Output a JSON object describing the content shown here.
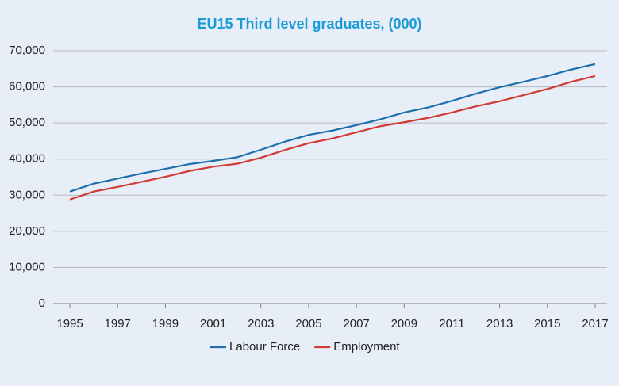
{
  "chart_data": {
    "type": "line",
    "title": "EU15 Third level graduates, (000)",
    "x": [
      1995,
      1996,
      1997,
      1998,
      1999,
      2000,
      2001,
      2002,
      2003,
      2004,
      2005,
      2006,
      2007,
      2008,
      2009,
      2010,
      2011,
      2012,
      2013,
      2014,
      2015,
      2016,
      2017
    ],
    "series": [
      {
        "name": "Labour Force",
        "color": "#1f6fad",
        "values": [
          31000,
          33200,
          34600,
          36000,
          37300,
          38600,
          39500,
          40500,
          42600,
          44800,
          46700,
          47900,
          49400,
          51000,
          52900,
          54300,
          56100,
          58100,
          59900,
          61400,
          63000,
          64800,
          66300
        ]
      },
      {
        "name": "Employment",
        "color": "#d23a35",
        "values": [
          28800,
          31000,
          32300,
          33700,
          35100,
          36700,
          37900,
          38700,
          40400,
          42500,
          44400,
          45700,
          47400,
          49100,
          50200,
          51400,
          52900,
          54600,
          56000,
          57700,
          59400,
          61400,
          63000
        ]
      }
    ],
    "xlim": [
      1994.3,
      2017.5
    ],
    "xticks": [
      1995,
      1997,
      1999,
      2001,
      2003,
      2005,
      2007,
      2009,
      2011,
      2013,
      2015,
      2017
    ],
    "ylim": [
      0,
      70000
    ],
    "yticks": [
      0,
      {
        "value": 10000,
        "label": "10,000"
      },
      {
        "value": 20000,
        "label": "20,000"
      },
      {
        "value": 30000,
        "label": "30,000"
      },
      {
        "value": 40000,
        "label": "40,000"
      },
      {
        "value": 50000,
        "label": "50,000"
      },
      {
        "value": 60000,
        "label": "60,000"
      },
      {
        "value": 70000,
        "label": "70,000"
      }
    ],
    "grid": true,
    "legend": "bottom"
  }
}
